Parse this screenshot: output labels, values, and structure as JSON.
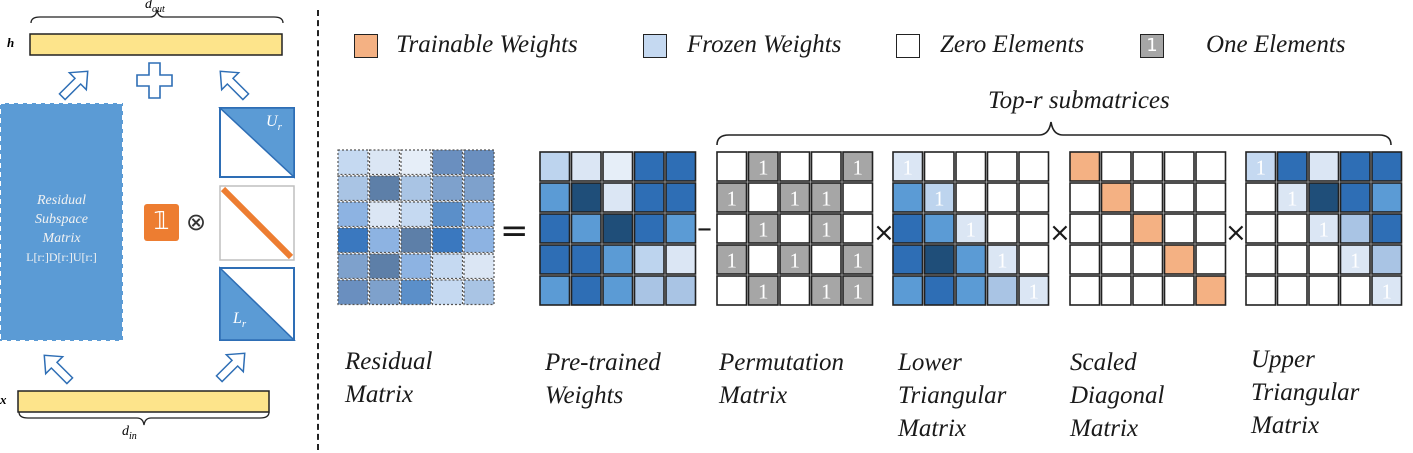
{
  "colors": {
    "trainable": "#f4b183",
    "frozen": "#c5d9f1",
    "zero": "#ffffff",
    "one": "#a6a6a6",
    "residual_block": "#5b9bd5",
    "bar_fill": "#fde48b",
    "one_badge": "#ed7d31",
    "diag_line": "#ed7d31"
  },
  "left_panel": {
    "h_label": "h",
    "x_label": "x",
    "d_out_label": "d",
    "d_out_sub": "out",
    "d_in_label": "d",
    "d_in_sub": "in",
    "residual_line1": "Residual",
    "residual_line2": "Subspace",
    "residual_line3": "Matrix",
    "residual_formula": "L[r:]D[r:]U[r:]",
    "one_badge_label": "𝟙",
    "otimes": "⊗",
    "u_label": "U",
    "u_sub": "r",
    "l_label": "L",
    "l_sub": "r"
  },
  "legend": {
    "trainable": "Trainable  Weights",
    "frozen": "Frozen  Weights",
    "zero": "Zero  Elements",
    "one_swatch": "1",
    "one": "One Elements"
  },
  "top_r_label": "Top-r submatrices",
  "operators": {
    "equals": "=",
    "minus": "–",
    "times": "×"
  },
  "captions": {
    "residual": [
      "Residual",
      "Matrix"
    ],
    "pretrained": [
      "Pre-trained",
      "Weights"
    ],
    "permutation": [
      "Permutation",
      "Matrix"
    ],
    "lower": [
      "Lower",
      "Triangular",
      "Matrix"
    ],
    "diagonal": [
      "Scaled",
      "Diagonal",
      "Matrix"
    ],
    "upper": [
      "Upper",
      "Triangular",
      "Matrix"
    ]
  },
  "matrices": {
    "residual": [
      [
        "#c5d9f1",
        "#dbe6f4",
        "#e6eef8",
        "#6a8fbf",
        "#6a8fbf"
      ],
      [
        "#a9c4e4",
        "#5d7fa8",
        "#a9c4e4",
        "#7ea1cc",
        "#7ea1cc"
      ],
      [
        "#8db3e2",
        "#dbe6f4",
        "#c5d9f1",
        "#5b8fc9",
        "#8db3e2"
      ],
      [
        "#3a78bf",
        "#8db3e2",
        "#5d7fa8",
        "#3a78bf",
        "#8db3e2"
      ],
      [
        "#7ea1cc",
        "#5d7fa8",
        "#8db3e2",
        "#c5d9f1",
        "#dbe6f4"
      ],
      [
        "#6a8fbf",
        "#7ea1cc",
        "#5b8fc9",
        "#c5d9f1",
        "#a9c4e4"
      ]
    ],
    "pretrained": [
      [
        "#bdd4ee",
        "#dbe6f4",
        "#e6eef8",
        "#2e6eb5",
        "#2e6eb5"
      ],
      [
        "#5b9bd5",
        "#1f4e79",
        "#dbe6f4",
        "#2e6eb5",
        "#2e6eb5"
      ],
      [
        "#2e6eb5",
        "#5b9bd5",
        "#1f4e79",
        "#2e6eb5",
        "#5b9bd5"
      ],
      [
        "#2e6eb5",
        "#2e6eb5",
        "#5b9bd5",
        "#bdd4ee",
        "#dbe6f4"
      ],
      [
        "#5b9bd5",
        "#2e6eb5",
        "#5b9bd5",
        "#a9c4e4",
        "#a9c4e4"
      ]
    ],
    "permutation": [
      [
        "z",
        "1",
        "z",
        "z",
        "1"
      ],
      [
        "1",
        "z",
        "1",
        "1",
        "z"
      ],
      [
        "z",
        "1",
        "z",
        "1",
        "z"
      ],
      [
        "1",
        "z",
        "1",
        "z",
        "1"
      ],
      [
        "z",
        "1",
        "z",
        "1",
        "1"
      ]
    ],
    "lower": [
      [
        "#dbe6f4",
        "#ffffff",
        "#ffffff",
        "#ffffff",
        "#ffffff"
      ],
      [
        "#5b9bd5",
        "#bdd4ee",
        "#ffffff",
        "#ffffff",
        "#ffffff"
      ],
      [
        "#2e6eb5",
        "#5b9bd5",
        "#dbe6f4",
        "#ffffff",
        "#ffffff"
      ],
      [
        "#2e6eb5",
        "#1f4e79",
        "#5b9bd5",
        "#dbe6f4",
        "#ffffff"
      ],
      [
        "#5b9bd5",
        "#2e6eb5",
        "#5b9bd5",
        "#a9c4e4",
        "#dbe6f4"
      ]
    ],
    "lower_ones": [
      [
        0,
        0
      ],
      [
        1,
        1
      ],
      [
        2,
        2
      ],
      [
        3,
        3
      ],
      [
        4,
        4
      ]
    ],
    "diagonal": [
      0,
      1,
      2,
      3,
      4
    ],
    "upper": [
      [
        "#c5d9f1",
        "#2e6eb5",
        "#dbe6f4",
        "#2e6eb5",
        "#2e6eb5"
      ],
      [
        "#ffffff",
        "#dbe6f4",
        "#1f4e79",
        "#2e6eb5",
        "#5b9bd5"
      ],
      [
        "#ffffff",
        "#ffffff",
        "#dbe6f4",
        "#a9c4e4",
        "#2e6eb5"
      ],
      [
        "#ffffff",
        "#ffffff",
        "#ffffff",
        "#dbe6f4",
        "#a9c4e4"
      ],
      [
        "#ffffff",
        "#ffffff",
        "#ffffff",
        "#ffffff",
        "#dbe6f4"
      ]
    ],
    "upper_ones": [
      [
        0,
        0
      ],
      [
        1,
        1
      ],
      [
        2,
        2
      ],
      [
        3,
        3
      ],
      [
        4,
        4
      ]
    ]
  }
}
